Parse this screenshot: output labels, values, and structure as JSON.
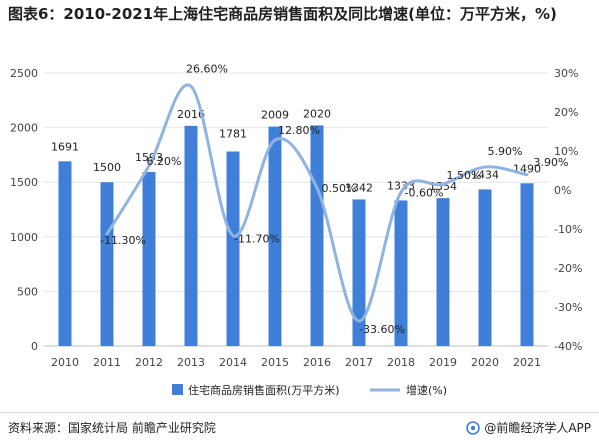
{
  "title": "图表6：2010-2021年上海住宅商品房销售面积及同比增速(单位：万平方米，%)",
  "colors": {
    "bar": "#3f7fd8",
    "line": "#8fb4e3",
    "grid": "#e6e6e6",
    "axis_text": "#444444",
    "label_text": "#222222"
  },
  "chart_data": {
    "type": "bar",
    "categories": [
      "2010",
      "2011",
      "2012",
      "2013",
      "2014",
      "2015",
      "2016",
      "2017",
      "2018",
      "2019",
      "2020",
      "2021"
    ],
    "series": [
      {
        "name": "住宅商品房销售面积(万平方米)",
        "type": "bar",
        "axis": "left",
        "values": [
          1691,
          1500,
          1593,
          2016,
          1781,
          2009,
          2020,
          1342,
          1333,
          1354,
          1434,
          1490
        ],
        "labels": [
          "1691",
          "1500",
          "1593",
          "2016",
          "1781",
          "2009",
          "2020",
          "1342",
          "1333",
          "1354",
          "1434",
          "1490"
        ]
      },
      {
        "name": "增速(%)",
        "type": "line",
        "axis": "right",
        "values": [
          null,
          -11.3,
          6.2,
          26.6,
          -11.7,
          12.8,
          0.5,
          -33.6,
          -0.6,
          1.5,
          5.9,
          3.9
        ],
        "labels": [
          "",
          "-11.30%",
          "6.20%",
          "26.60%",
          "-11.70%",
          "12.80%",
          "0.50%",
          "-33.60%",
          "-0.60%",
          "1.50%",
          "5.90%",
          "3.90%"
        ]
      }
    ],
    "ylim_left": [
      0,
      2500
    ],
    "yticks_left": [
      "0",
      "500",
      "1000",
      "1500",
      "2000",
      "2500"
    ],
    "ylim_right": [
      -40,
      30
    ],
    "yticks_right": [
      "-40%",
      "-30%",
      "-20%",
      "-10%",
      "0%",
      "10%",
      "20%",
      "30%"
    ],
    "grid": true,
    "legend_position": "bottom"
  },
  "footer": {
    "source": "资料来源：国家统计局 前瞻产业研究院",
    "brand": "@前瞻经济学人APP"
  }
}
